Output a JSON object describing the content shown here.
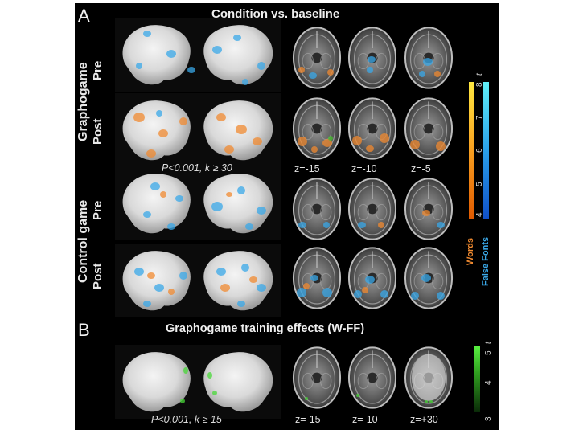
{
  "panel_a": {
    "letter": "A",
    "title": "Condition vs. baseline",
    "groups": [
      {
        "name": "Graphogame",
        "sessions": [
          "Pre",
          "Post"
        ]
      },
      {
        "name": "Control game",
        "sessions": [
          "Pre",
          "Post"
        ]
      }
    ],
    "threshold": "P<0.001, k ≥ 30",
    "slice_labels": [
      "z=-15",
      "z=-10",
      "z=-5"
    ],
    "colorbar": {
      "unit": "t",
      "ticks": [
        "4",
        "5",
        "6",
        "7",
        "8"
      ],
      "words_label": "Words",
      "false_fonts_label": "False Fonts"
    }
  },
  "panel_b": {
    "letter": "B",
    "title": "Graphogame training effects (W-FF)",
    "threshold": "P<0.001, k ≥ 15",
    "slice_labels": [
      "z=-15",
      "z=-10",
      "z=+30"
    ],
    "colorbar": {
      "unit": "t",
      "ticks": [
        "3",
        "4",
        "5"
      ]
    }
  },
  "colors": {
    "words": "#f08a30",
    "false_fonts": "#3aa8e8",
    "training": "#48d838",
    "background": "#000000"
  }
}
